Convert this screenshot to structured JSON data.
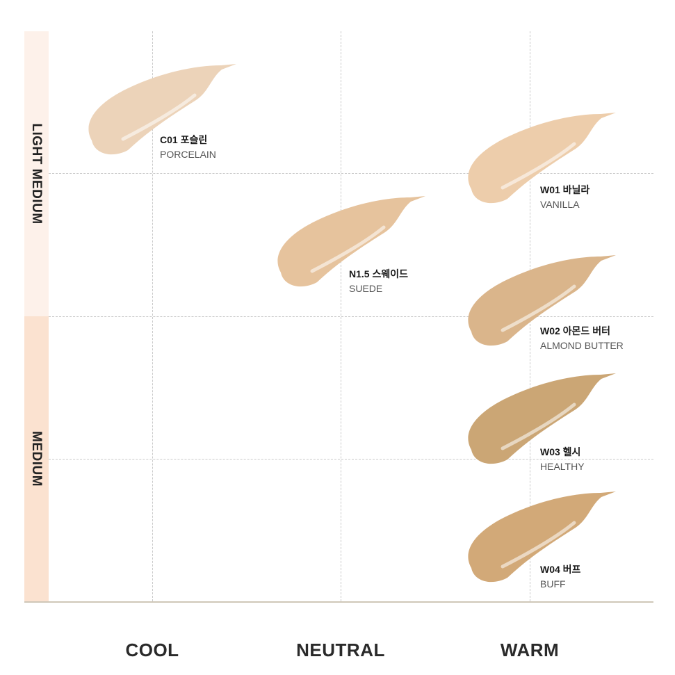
{
  "rows": [
    {
      "label": "LIGHT MEDIUM",
      "color": "#fdf1ea"
    },
    {
      "label": "MEDIUM",
      "color": "#fbe2d0"
    }
  ],
  "columns": [
    "COOL",
    "NEUTRAL",
    "WARM"
  ],
  "shades": [
    {
      "code": "C01 포슬린",
      "name": "PORCELAIN",
      "color": "#ecd3b9",
      "column": "COOL",
      "row": "LIGHT MEDIUM"
    },
    {
      "code": "N1.5 스웨이드",
      "name": "SUEDE",
      "color": "#e6c39d",
      "column": "NEUTRAL",
      "row": "LIGHT MEDIUM"
    },
    {
      "code": "W01 바닐라",
      "name": "VANILLA",
      "color": "#edcdab",
      "column": "WARM",
      "row": "LIGHT MEDIUM"
    },
    {
      "code": "W02 아몬드 버터",
      "name": "ALMOND BUTTER",
      "color": "#dab58b",
      "column": "WARM",
      "row": "LIGHT MEDIUM"
    },
    {
      "code": "W03 헬시",
      "name": "HEALTHY",
      "color": "#cba675",
      "column": "WARM",
      "row": "MEDIUM"
    },
    {
      "code": "W04 버프",
      "name": "BUFF",
      "color": "#d2a978",
      "column": "WARM",
      "row": "MEDIUM"
    }
  ]
}
